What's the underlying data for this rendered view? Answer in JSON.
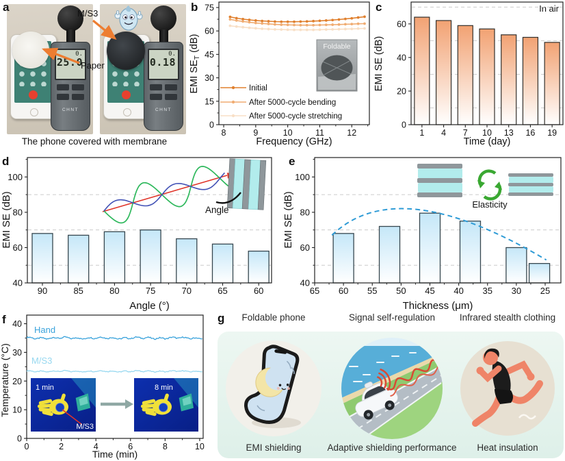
{
  "panel_labels": {
    "a": "a",
    "b": "b",
    "c": "c",
    "d": "d",
    "e": "e",
    "f": "f",
    "g": "g"
  },
  "panel_a": {
    "caption": "The phone covered with membrane",
    "ms3_label": "M/S3",
    "paper_label": "Paper",
    "meter_brand": "CHNT",
    "left_meter": {
      "row1": "0.",
      "row2": "25.0"
    },
    "right_meter": {
      "row1": "0.",
      "row2": "0.18"
    }
  },
  "chart_data": [
    {
      "id": "b",
      "type": "line",
      "xlabel": "Frequency (GHz)",
      "ylabel_parts": [
        {
          "t": "EMI SE"
        },
        {
          "t": "T",
          "sub": true
        },
        {
          "t": " (dB)"
        }
      ],
      "xlim": [
        7.85,
        12.55
      ],
      "ylim": [
        0,
        78.5
      ],
      "xticks": [
        8,
        9,
        10,
        11,
        12
      ],
      "xminor": [
        8.5,
        9.5,
        10.5,
        11.5,
        12.5
      ],
      "yticks": [
        0,
        15,
        30,
        45,
        60,
        75
      ],
      "yminor": [
        7.5,
        22.5,
        37.5,
        52.5,
        67.5
      ],
      "x_start": 8.2,
      "x_step": 0.2,
      "legend_position": "lower left",
      "inset_label": "Foldable",
      "series": [
        {
          "name": "Initial",
          "color": "#E0802F",
          "y": [
            69.0,
            68.2,
            67.6,
            67.1,
            66.7,
            66.4,
            66.2,
            66.0,
            65.9,
            65.9,
            65.9,
            66.0,
            66.1,
            66.3,
            66.5,
            66.7,
            67.0,
            67.3,
            67.7,
            68.1,
            68.6,
            69.1
          ]
        },
        {
          "name": "After 5000-cycle bending",
          "color": "#F0AC72",
          "y": [
            67.4,
            66.7,
            66.1,
            65.6,
            65.1,
            64.8,
            64.5,
            64.2,
            64.0,
            63.9,
            63.8,
            63.7,
            63.7,
            63.7,
            63.8,
            63.9,
            64.0,
            64.1,
            64.3,
            64.4,
            64.6,
            64.7
          ]
        },
        {
          "name": "After 5000-cycle stretching",
          "color": "#F8DFC6",
          "y": [
            63.3,
            62.8,
            62.4,
            62.0,
            61.7,
            61.4,
            61.2,
            61.0,
            60.9,
            60.8,
            60.7,
            60.7,
            60.7,
            60.7,
            60.8,
            60.9,
            61.0,
            61.1,
            61.2,
            61.3,
            61.5,
            61.6
          ]
        }
      ]
    },
    {
      "id": "c",
      "type": "bar",
      "xlabel": "Time (day)",
      "ylabel": "EMI SE (dB)",
      "categories": [
        "1",
        "4",
        "7",
        "10",
        "13",
        "16",
        "19"
      ],
      "values": [
        64,
        62,
        59,
        57,
        53.5,
        52,
        49
      ],
      "ylim": [
        0,
        73
      ],
      "yticks": [
        0,
        20,
        40,
        60
      ],
      "gridlines": [
        10,
        30,
        50,
        70
      ],
      "annotation": "In air",
      "bar_top_color": "#F2A273",
      "bar_bottom_color": "#FFFFFF",
      "bar_stroke": "#33302c",
      "grid_on": true
    },
    {
      "id": "d",
      "type": "bar",
      "xlabel": "Angle (°)",
      "ylabel": "EMI SE (dB)",
      "categories": [
        "90",
        "85",
        "80",
        "75",
        "70",
        "65",
        "60"
      ],
      "values": [
        68,
        67,
        69,
        70,
        65,
        62,
        58
      ],
      "ylim": [
        40,
        111
      ],
      "yticks": [
        40,
        60,
        80,
        100
      ],
      "gridlines": [
        50,
        70,
        90
      ],
      "annotation": "Angle",
      "bar_top_color": "#C5E7F8",
      "bar_bottom_color": "#FFFFFF",
      "bar_stroke": "#37474f",
      "grid_on": true
    },
    {
      "id": "e",
      "type": "bar",
      "xlabel": "Thickness (μm)",
      "ylabel": "EMI SE (dB)",
      "xticks": [
        65,
        60,
        55,
        50,
        45,
        40,
        35,
        30,
        25
      ],
      "bars": [
        {
          "thickness": 60,
          "value": 68
        },
        {
          "thickness": 52,
          "value": 72
        },
        {
          "thickness": 45,
          "value": 79.5
        },
        {
          "thickness": 38,
          "value": 75
        },
        {
          "thickness": 30,
          "value": 60
        },
        {
          "thickness": 26,
          "value": 51
        }
      ],
      "ylim": [
        40,
        111
      ],
      "yticks": [
        40,
        60,
        80,
        100
      ],
      "gridlines": [
        50,
        70,
        90
      ],
      "trend_points": [
        [
          62,
          67
        ],
        [
          47,
          81.5
        ],
        [
          24.8,
          53
        ]
      ],
      "trend_color": "#2E9BD6",
      "annotation": "Elasticity",
      "bar_top_color": "#C5E7F8",
      "bar_bottom_color": "#FFFFFF",
      "bar_stroke": "#37474f",
      "grid_on": true
    },
    {
      "id": "f",
      "type": "line",
      "xlabel": "Time (min)",
      "ylabel": "Temperature (°C)",
      "xlim": [
        0,
        10.2
      ],
      "ylim": [
        0,
        43
      ],
      "xticks": [
        0,
        2,
        4,
        6,
        8,
        10
      ],
      "xminor": [
        1,
        3,
        5,
        7,
        9
      ],
      "yticks": [
        0,
        10,
        20,
        30,
        40
      ],
      "yminor": [
        5,
        15,
        25,
        35
      ],
      "series": [
        {
          "name": "Hand",
          "color": "#39A2DB",
          "base": 35,
          "noise": 0.45
        },
        {
          "name": "M/S3",
          "color": "#97D8F0",
          "base": 23.4,
          "noise": 0.3
        }
      ],
      "insets": [
        {
          "label": "1 min"
        },
        {
          "label": "8 min"
        }
      ],
      "inset_annotation": "M/S3"
    }
  ],
  "panel_g": {
    "items": [
      {
        "title": "Foldable phone",
        "caption": "EMI shielding"
      },
      {
        "title": "Signal self-regulation",
        "caption": "Adaptive shielding performance"
      },
      {
        "title": "Infrared stealth clothing",
        "caption": "Heat insulation"
      }
    ]
  }
}
